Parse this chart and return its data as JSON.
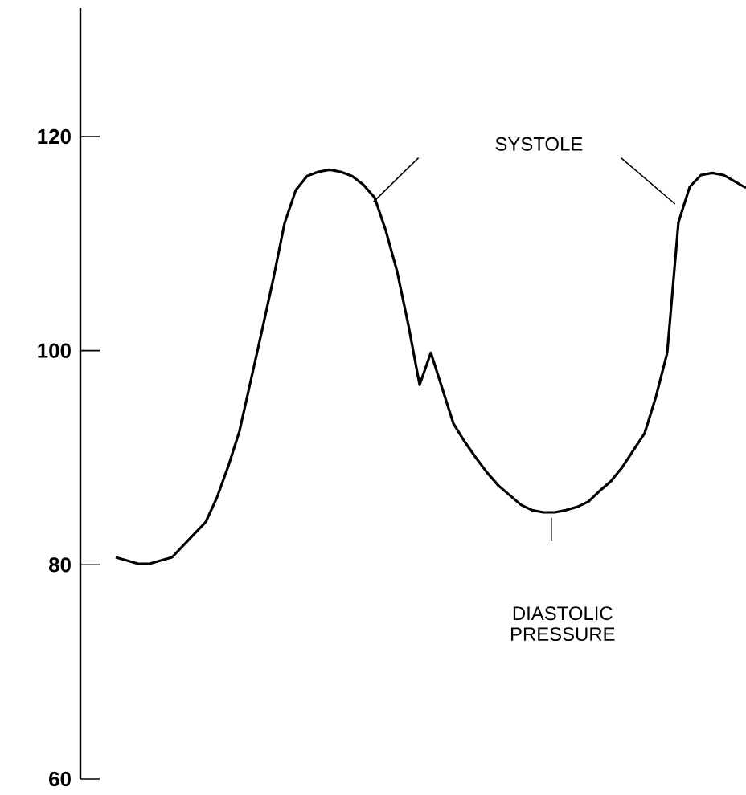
{
  "chart_data": {
    "type": "line",
    "categories": [
      null,
      null,
      null,
      null,
      null,
      null,
      null,
      null,
      null,
      null,
      null,
      null,
      null,
      null,
      null,
      null,
      null,
      null,
      null,
      null,
      null,
      null,
      null,
      null,
      null,
      null,
      null,
      null,
      null,
      null,
      null,
      null,
      null,
      null,
      null,
      null,
      null,
      null,
      null,
      null,
      null,
      null,
      null,
      null,
      null,
      null,
      null,
      null,
      null,
      null,
      null,
      null,
      null,
      null,
      null,
      null,
      null
    ],
    "values": [
      80.7,
      80.4,
      80.1,
      80.1,
      80.4,
      80.7,
      81.8,
      82.9,
      84.0,
      86.3,
      89.2,
      92.5,
      97.2,
      101.9,
      106.7,
      111.9,
      115.0,
      116.3,
      116.7,
      116.9,
      116.7,
      116.3,
      115.5,
      114.3,
      111.2,
      107.4,
      102.4,
      96.8,
      99.8,
      96.5,
      93.2,
      91.5,
      90.0,
      88.6,
      87.4,
      86.5,
      85.6,
      85.1,
      84.9,
      84.9,
      85.1,
      85.4,
      85.9,
      86.9,
      87.8,
      89.1,
      90.7,
      92.3,
      95.7,
      99.8,
      112.0,
      115.3,
      116.4,
      116.6,
      116.4,
      115.8,
      115.2
    ],
    "color": "#000000",
    "marker": "none",
    "line_style": "solid",
    "ylim": [
      60,
      132
    ],
    "yticks": [
      60,
      80,
      100,
      120
    ],
    "tick_labels": "y",
    "annotations": [
      "SYSTOLE",
      "DIASTOLIC PRESSURE"
    ]
  }
}
